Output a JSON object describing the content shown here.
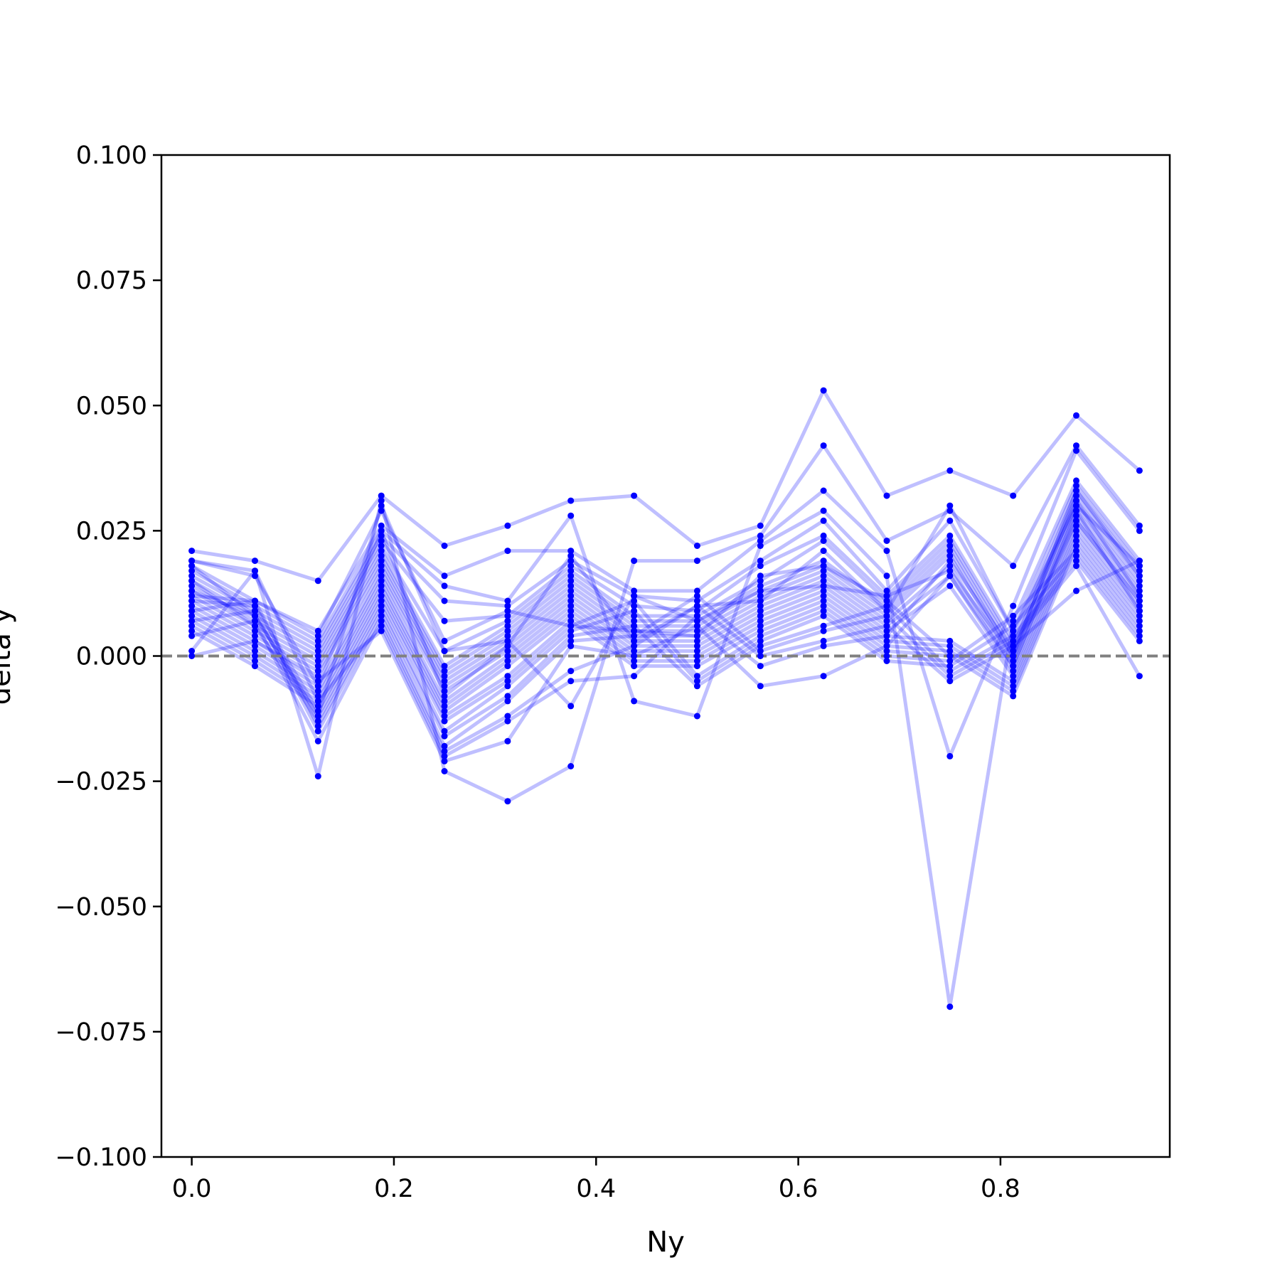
{
  "chart_data": {
    "type": "line",
    "title": "",
    "xlabel": "Ny",
    "ylabel": "delta y",
    "xlim": [
      -0.03,
      0.9675
    ],
    "ylim": [
      -0.1,
      0.1
    ],
    "x_ticks": [
      "0.0",
      "0.2",
      "0.4",
      "0.6",
      "0.8"
    ],
    "y_ticks": [
      "0.100",
      "0.075",
      "0.050",
      "0.025",
      "0.000",
      "−0.025",
      "−0.050",
      "−0.075",
      "−0.100"
    ],
    "grid": false,
    "reference_line": {
      "y": 0.0,
      "style": "dashed",
      "color": "#808080"
    },
    "series_color": "#0000ff",
    "line_alpha": 0.25,
    "x": [
      0.0,
      0.0625,
      0.125,
      0.1875,
      0.25,
      0.3125,
      0.375,
      0.4375,
      0.5,
      0.5625,
      0.625,
      0.6875,
      0.75,
      0.8125,
      0.875,
      0.9375
    ],
    "series": [
      {
        "values": [
          0.021,
          0.019,
          0.015,
          0.032,
          0.022,
          0.026,
          0.031,
          0.032,
          0.022,
          0.026,
          0.053,
          0.032,
          0.037,
          0.032,
          0.048,
          0.037
        ]
      },
      {
        "values": [
          0.019,
          0.017,
          -0.024,
          0.031,
          -0.023,
          -0.029,
          -0.022,
          0.019,
          0.019,
          0.024,
          0.042,
          0.023,
          0.029,
          0.018,
          0.042,
          0.026
        ]
      },
      {
        "values": [
          0.018,
          0.011,
          0.005,
          0.026,
          0.016,
          0.021,
          0.021,
          0.013,
          0.013,
          0.023,
          0.033,
          0.021,
          -0.02,
          0.01,
          0.041,
          0.025
        ]
      },
      {
        "values": [
          0.017,
          0.01,
          0.003,
          0.025,
          0.014,
          0.011,
          0.028,
          -0.009,
          -0.012,
          0.022,
          0.029,
          0.016,
          -0.07,
          0.007,
          0.035,
          0.019
        ]
      },
      {
        "values": [
          0.016,
          0.009,
          0.002,
          0.024,
          0.011,
          0.01,
          0.019,
          0.012,
          0.011,
          0.019,
          0.027,
          0.013,
          0.027,
          0.005,
          0.034,
          0.018
        ]
      },
      {
        "values": [
          0.015,
          0.008,
          0.001,
          0.023,
          0.007,
          0.008,
          0.018,
          0.01,
          0.009,
          0.018,
          0.024,
          0.012,
          0.024,
          0.003,
          0.033,
          0.017
        ]
      },
      {
        "values": [
          0.014,
          0.007,
          0.0,
          0.022,
          0.001,
          0.007,
          0.017,
          0.008,
          0.008,
          0.015,
          0.023,
          0.011,
          0.023,
          0.002,
          0.032,
          0.016
        ]
      },
      {
        "values": [
          0.013,
          0.006,
          -0.001,
          0.021,
          -0.002,
          0.006,
          0.016,
          0.007,
          0.007,
          0.014,
          0.019,
          0.01,
          0.022,
          0.001,
          0.031,
          0.015
        ]
      },
      {
        "values": [
          0.012,
          0.005,
          -0.002,
          0.02,
          -0.003,
          0.005,
          0.015,
          0.006,
          0.006,
          0.013,
          0.018,
          0.009,
          0.021,
          0.0,
          0.03,
          0.014
        ]
      },
      {
        "values": [
          0.011,
          0.004,
          -0.003,
          0.019,
          -0.004,
          0.004,
          0.014,
          0.005,
          0.005,
          0.012,
          0.017,
          0.008,
          0.02,
          -0.001,
          0.029,
          0.013
        ]
      },
      {
        "values": [
          0.01,
          0.003,
          -0.004,
          0.018,
          -0.005,
          0.003,
          0.013,
          0.004,
          0.004,
          0.011,
          0.016,
          0.007,
          0.018,
          -0.002,
          0.028,
          0.012
        ]
      },
      {
        "values": [
          0.009,
          0.002,
          -0.006,
          0.017,
          -0.006,
          0.002,
          0.012,
          0.003,
          0.003,
          0.01,
          0.015,
          0.006,
          0.016,
          -0.003,
          0.027,
          0.011
        ]
      },
      {
        "values": [
          0.008,
          0.001,
          -0.007,
          0.016,
          -0.007,
          0.001,
          0.011,
          0.002,
          0.002,
          0.009,
          0.014,
          0.005,
          0.014,
          -0.004,
          0.026,
          0.01
        ]
      },
      {
        "values": [
          0.007,
          0.0,
          -0.008,
          0.015,
          -0.009,
          0.0,
          0.01,
          0.001,
          0.001,
          0.008,
          0.013,
          0.004,
          0.003,
          -0.005,
          0.025,
          0.009
        ]
      },
      {
        "values": [
          0.006,
          -0.001,
          -0.009,
          0.014,
          -0.01,
          -0.001,
          0.009,
          0.0,
          0.0,
          0.007,
          0.012,
          0.003,
          0.002,
          -0.006,
          0.024,
          0.008
        ]
      },
      {
        "values": [
          0.005,
          -0.002,
          -0.01,
          0.013,
          -0.011,
          -0.002,
          0.008,
          -0.001,
          -0.001,
          0.006,
          0.011,
          0.002,
          0.001,
          -0.007,
          0.023,
          0.007
        ]
      },
      {
        "values": [
          0.011,
          0.01,
          -0.011,
          0.012,
          -0.012,
          -0.004,
          0.007,
          -0.002,
          -0.002,
          0.005,
          0.01,
          0.001,
          0.0,
          -0.008,
          0.022,
          0.006
        ]
      },
      {
        "values": [
          0.013,
          0.008,
          -0.012,
          0.011,
          -0.013,
          -0.005,
          0.006,
          0.011,
          -0.004,
          0.004,
          0.009,
          0.0,
          -0.001,
          0.008,
          0.021,
          0.005
        ]
      },
      {
        "values": [
          0.015,
          0.006,
          -0.013,
          0.01,
          -0.015,
          -0.006,
          0.005,
          0.009,
          -0.005,
          0.003,
          0.008,
          -0.001,
          -0.002,
          0.006,
          0.02,
          0.004
        ]
      },
      {
        "values": [
          0.009,
          0.011,
          -0.014,
          0.009,
          -0.016,
          -0.008,
          0.004,
          0.006,
          -0.006,
          0.002,
          0.006,
          0.01,
          -0.003,
          0.004,
          0.019,
          0.003
        ]
      },
      {
        "values": [
          0.007,
          0.009,
          -0.015,
          0.008,
          -0.018,
          -0.009,
          0.003,
          0.004,
          0.012,
          0.001,
          0.005,
          0.008,
          -0.004,
          0.003,
          0.018,
          -0.004
        ]
      },
      {
        "values": [
          0.004,
          0.007,
          -0.017,
          0.007,
          -0.019,
          -0.012,
          -0.003,
          0.002,
          0.01,
          0.0,
          0.003,
          0.006,
          -0.005,
          0.002,
          0.013,
          0.019
        ]
      },
      {
        "values": [
          0.001,
          0.017,
          -0.009,
          0.006,
          -0.02,
          -0.013,
          -0.005,
          -0.004,
          0.008,
          -0.002,
          0.002,
          0.004,
          0.019,
          0.001,
          0.031,
          0.012
        ]
      },
      {
        "values": [
          0.0,
          0.003,
          -0.005,
          0.005,
          -0.021,
          -0.017,
          0.002,
          0.0,
          0.006,
          -0.006,
          -0.004,
          0.002,
          0.016,
          -0.002,
          0.029,
          0.009
        ]
      },
      {
        "values": [
          0.018,
          0.008,
          -0.012,
          0.03,
          0.001,
          0.003,
          -0.01,
          0.012,
          0.007,
          0.013,
          0.014,
          0.012,
          0.017,
          0.0,
          0.033,
          0.016
        ]
      },
      {
        "values": [
          0.012,
          0.011,
          0.004,
          0.029,
          0.003,
          0.009,
          0.006,
          0.005,
          0.004,
          0.016,
          0.018,
          0.011,
          0.0,
          0.0,
          0.027,
          0.011
        ]
      },
      {
        "values": [
          0.019,
          0.016,
          -0.006,
          0.025,
          -0.008,
          0.002,
          0.02,
          0.003,
          0.01,
          0.011,
          0.021,
          0.009,
          0.03,
          0.005,
          0.03,
          0.018
        ]
      }
    ]
  }
}
